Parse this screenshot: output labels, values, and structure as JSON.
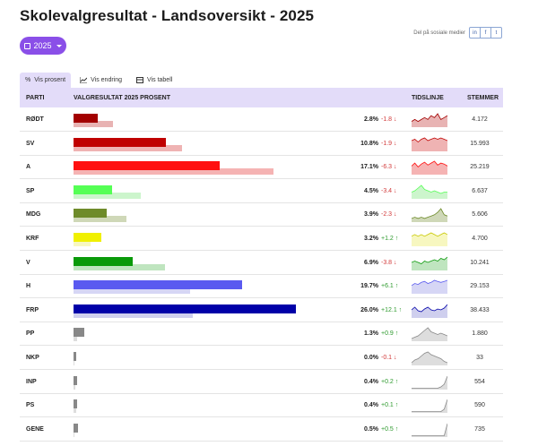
{
  "title": "Skolevalgresultat - Landsoversikt - 2025",
  "year_button": {
    "label": "2025"
  },
  "share": {
    "label": "Del på sosiale medier",
    "icons": [
      "in",
      "f",
      "t"
    ]
  },
  "tabs": [
    {
      "label": "Vis prosent",
      "icon": "%",
      "active": true
    },
    {
      "label": "Vis endring",
      "icon": "chart-icon",
      "active": false
    },
    {
      "label": "Vis tabell",
      "icon": "table-icon",
      "active": false
    }
  ],
  "table": {
    "headers": {
      "party": "PARTI",
      "result": "VALGRESULTAT 2025 PROSENT",
      "timeline": "TIDSLINJE",
      "votes": "STEMMER"
    },
    "rows": [
      {
        "party": "RØDT",
        "pct": "2.8%",
        "pct_value": 2.8,
        "prev_value": 4.6,
        "change": "-1.8",
        "dir": "down",
        "votes": "4.172",
        "color": "#a30000",
        "prev_color": "#e8b3b3",
        "spark": [
          3,
          4,
          3,
          4,
          5,
          4,
          6,
          5,
          7,
          4,
          5,
          6
        ]
      },
      {
        "party": "SV",
        "pct": "10.8%",
        "pct_value": 10.8,
        "prev_value": 12.7,
        "change": "-1.9",
        "dir": "down",
        "votes": "15.993",
        "color": "#c00000",
        "prev_color": "#efb3b3",
        "spark": [
          8,
          9,
          7,
          9,
          10,
          8,
          9,
          10,
          9,
          10,
          9,
          8
        ]
      },
      {
        "party": "A",
        "pct": "17.1%",
        "pct_value": 17.1,
        "prev_value": 23.4,
        "change": "-6.3",
        "dir": "down",
        "votes": "25.219",
        "color": "#ff1010",
        "prev_color": "#f5b3b3",
        "spark": [
          9,
          12,
          8,
          11,
          13,
          10,
          12,
          14,
          10,
          12,
          11,
          9
        ]
      },
      {
        "party": "SP",
        "pct": "4.5%",
        "pct_value": 4.5,
        "prev_value": 7.9,
        "change": "-3.4",
        "dir": "down",
        "votes": "6.637",
        "color": "#55ff55",
        "prev_color": "#ccf5cc",
        "spark": [
          5,
          6,
          8,
          10,
          7,
          6,
          5,
          6,
          5,
          4,
          5,
          5
        ]
      },
      {
        "party": "MDG",
        "pct": "3.9%",
        "pct_value": 3.9,
        "prev_value": 6.2,
        "change": "-2.3",
        "dir": "down",
        "votes": "5.606",
        "color": "#6e8b2a",
        "prev_color": "#cfd8b8",
        "spark": [
          3,
          4,
          3,
          4,
          3,
          4,
          5,
          6,
          8,
          11,
          6,
          5
        ]
      },
      {
        "party": "KRF",
        "pct": "3.2%",
        "pct_value": 3.2,
        "prev_value": 2.0,
        "change": "+1.2",
        "dir": "up",
        "votes": "4.700",
        "color": "#f0f000",
        "prev_color": "#f7f7c0",
        "spark": [
          6,
          7,
          6,
          7,
          6,
          7,
          8,
          7,
          6,
          7,
          8,
          7
        ]
      },
      {
        "party": "V",
        "pct": "6.9%",
        "pct_value": 6.9,
        "prev_value": 10.7,
        "change": "-3.8",
        "dir": "down",
        "votes": "10.241",
        "color": "#0a9a0a",
        "prev_color": "#bfe5bf",
        "spark": [
          6,
          7,
          6,
          5,
          7,
          6,
          7,
          8,
          7,
          9,
          8,
          10
        ]
      },
      {
        "party": "H",
        "pct": "19.7%",
        "pct_value": 19.7,
        "prev_value": 13.6,
        "change": "+6.1",
        "dir": "up",
        "votes": "29.153",
        "color": "#5a5af0",
        "prev_color": "#d6d6f5",
        "spark": [
          8,
          10,
          9,
          11,
          12,
          10,
          11,
          13,
          12,
          11,
          12,
          13
        ]
      },
      {
        "party": "FRP",
        "pct": "26.0%",
        "pct_value": 26.0,
        "prev_value": 13.9,
        "change": "+12.1",
        "dir": "up",
        "votes": "38.433",
        "color": "#0000a8",
        "prev_color": "#cfcfee",
        "spark": [
          9,
          12,
          8,
          7,
          10,
          12,
          9,
          8,
          10,
          9,
          11,
          15
        ]
      },
      {
        "party": "PP",
        "pct": "1.3%",
        "pct_value": 1.3,
        "prev_value": 0.4,
        "change": "+0.9",
        "dir": "up",
        "votes": "1.880",
        "color": "#888888",
        "prev_color": "#dddddd",
        "spark": [
          2,
          3,
          4,
          6,
          8,
          10,
          7,
          6,
          5,
          6,
          5,
          4
        ]
      },
      {
        "party": "NKP",
        "pct": "0.0%",
        "pct_value": 0.0,
        "prev_value": 0.1,
        "change": "-0.1",
        "dir": "down",
        "votes": "33",
        "color": "#888888",
        "prev_color": "#dddddd",
        "spark": [
          2,
          4,
          5,
          7,
          9,
          10,
          8,
          7,
          6,
          5,
          3,
          2
        ]
      },
      {
        "party": "INP",
        "pct": "0.4%",
        "pct_value": 0.4,
        "prev_value": 0.2,
        "change": "+0.2",
        "dir": "up",
        "votes": "554",
        "color": "#888888",
        "prev_color": "#dddddd",
        "spark": [
          1,
          1,
          1,
          1,
          1,
          1,
          1,
          1,
          1,
          2,
          4,
          10
        ]
      },
      {
        "party": "PS",
        "pct": "0.4%",
        "pct_value": 0.4,
        "prev_value": 0.3,
        "change": "+0.1",
        "dir": "up",
        "votes": "590",
        "color": "#888888",
        "prev_color": "#dddddd",
        "spark": [
          1,
          1,
          1,
          1,
          1,
          1,
          1,
          1,
          1,
          1,
          3,
          11
        ]
      },
      {
        "party": "GENE",
        "pct": "0.5%",
        "pct_value": 0.5,
        "prev_value": 0.0,
        "change": "+0.5",
        "dir": "up",
        "votes": "735",
        "color": "#888888",
        "prev_color": "#dddddd",
        "spark": [
          1,
          1,
          1,
          1,
          1,
          1,
          1,
          1,
          1,
          1,
          1,
          10
        ]
      }
    ]
  },
  "colors": {
    "accent": "#8a4fe8",
    "header_bg": "#e3dcf9",
    "down": "#d23a3a",
    "up": "#2e9a2e"
  }
}
